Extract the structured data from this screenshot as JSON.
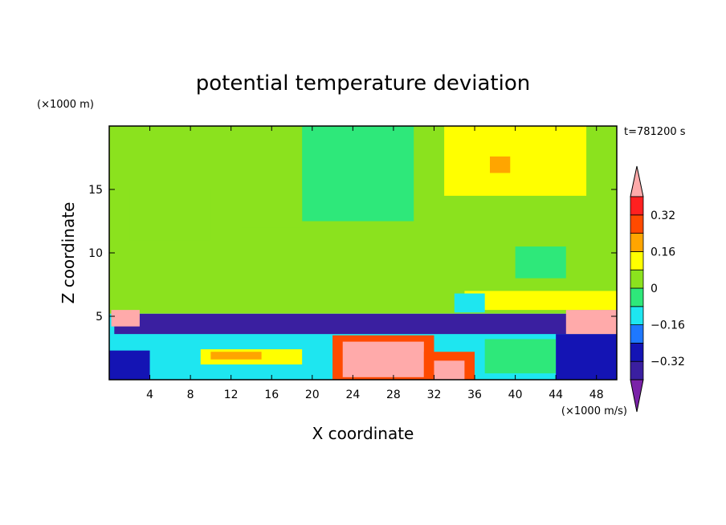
{
  "chart_data": {
    "type": "heatmap",
    "title": "potential temperature deviation",
    "xlabel": "X coordinate",
    "ylabel": "Z coordinate",
    "x_unit": "(×1000 m/s)",
    "y_unit": "(×1000 m)",
    "time_label": "t=781200 s",
    "xlim": [
      0,
      50
    ],
    "ylim": [
      0,
      20
    ],
    "x_ticks": [
      4,
      8,
      12,
      16,
      20,
      24,
      28,
      32,
      36,
      40,
      44,
      48
    ],
    "x_tick_labels": [
      "4",
      "8",
      "12",
      "16",
      "20",
      "24",
      "28",
      "32",
      "36",
      "40",
      "44",
      "48"
    ],
    "y_ticks": [
      5,
      10,
      15
    ],
    "y_tick_labels": [
      "5",
      "10",
      "15"
    ],
    "colorbar": {
      "levels": [
        -0.4,
        -0.32,
        -0.24,
        -0.16,
        -0.08,
        0,
        0.08,
        0.16,
        0.24,
        0.32,
        0.4
      ],
      "labels": [
        {
          "value": 0.32,
          "text": "0.32"
        },
        {
          "value": 0.16,
          "text": "0.16"
        },
        {
          "value": 0,
          "text": "0"
        },
        {
          "value": -0.16,
          "text": "−0.16"
        },
        {
          "value": -0.32,
          "text": "−0.32"
        }
      ],
      "colors": [
        "#7a22a8",
        "#3a1fa0",
        "#1414b4",
        "#1e78ff",
        "#1ee6f0",
        "#2ee87a",
        "#8be21e",
        "#ffff00",
        "#ffa500",
        "#ff4a00",
        "#ff2020",
        "#ffaaaa"
      ]
    },
    "regions": [
      {
        "x0": 0,
        "x1": 50,
        "y0": 5.2,
        "y1": 20,
        "level": 0.04
      },
      {
        "x0": 0,
        "x1": 50,
        "y0": 0,
        "y1": 5.2,
        "level": -0.12
      },
      {
        "x0": 19,
        "x1": 30,
        "y0": 12.5,
        "y1": 20,
        "level": -0.04
      },
      {
        "x0": 33,
        "x1": 47,
        "y0": 14.5,
        "y1": 20,
        "level": 0.12
      },
      {
        "x0": 37.5,
        "x1": 39.5,
        "y0": 16.3,
        "y1": 17.6,
        "level": 0.2
      },
      {
        "x0": 2,
        "x1": 10,
        "y0": 11,
        "y1": 15,
        "level": 0.0
      },
      {
        "x0": 13,
        "x1": 19,
        "y0": 12,
        "y1": 15,
        "level": 0.0
      },
      {
        "x0": 40,
        "x1": 45,
        "y0": 8,
        "y1": 10.5,
        "level": -0.04
      },
      {
        "x0": 35,
        "x1": 50,
        "y0": 5.5,
        "y1": 7,
        "level": 0.12
      },
      {
        "x0": 34,
        "x1": 37,
        "y0": 5.3,
        "y1": 6.8,
        "level": -0.12
      },
      {
        "x0": 0.5,
        "x1": 50,
        "y0": 3.6,
        "y1": 5.2,
        "level": -0.36
      },
      {
        "x0": 0,
        "x1": 4,
        "y0": 0,
        "y1": 2.3,
        "level": -0.28
      },
      {
        "x0": 9,
        "x1": 19,
        "y0": 1.2,
        "y1": 2.4,
        "level": 0.12
      },
      {
        "x0": 10,
        "x1": 15,
        "y0": 1.6,
        "y1": 2.2,
        "level": 0.2
      },
      {
        "x0": 22,
        "x1": 32,
        "y0": 0,
        "y1": 3.5,
        "level": 0.28
      },
      {
        "x0": 23,
        "x1": 31,
        "y0": 0.2,
        "y1": 3.0,
        "level": 0.44
      },
      {
        "x0": 31,
        "x1": 36,
        "y0": 0,
        "y1": 2.2,
        "level": 0.28
      },
      {
        "x0": 32,
        "x1": 35,
        "y0": 0,
        "y1": 1.5,
        "level": 0.44
      },
      {
        "x0": 37,
        "x1": 44,
        "y0": 0.5,
        "y1": 3.2,
        "level": -0.04
      },
      {
        "x0": 44,
        "x1": 50,
        "y0": 0,
        "y1": 3.6,
        "level": -0.28
      },
      {
        "x0": 45,
        "x1": 50,
        "y0": 3.6,
        "y1": 5.5,
        "level": 0.44
      },
      {
        "x0": 0.2,
        "x1": 3,
        "y0": 4.2,
        "y1": 5.5,
        "level": 0.44
      }
    ]
  }
}
